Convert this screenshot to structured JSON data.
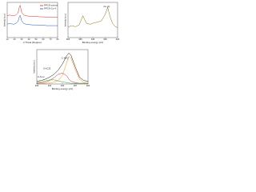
{
  "chart_data": [
    {
      "type": "line",
      "xlabel": "2 Theta (Degree)",
      "ylabel": "Intensity (a.u.)",
      "x": [
        10,
        13,
        16,
        19,
        22,
        25,
        27,
        28,
        30,
        33,
        36,
        40,
        45,
        50,
        55,
        60,
        65,
        70,
        75,
        80
      ],
      "xlim": [
        10,
        80
      ],
      "xticks": [
        10,
        20,
        30,
        40,
        50,
        60,
        70,
        80
      ],
      "ylim": [
        0,
        100
      ],
      "legend": "upper right",
      "series": [
        {
          "name": "PPCN-control",
          "color": "#d62728",
          "values": [
            62,
            64,
            63,
            62,
            64,
            70,
            88,
            92,
            72,
            64,
            62,
            61,
            60,
            60,
            59,
            59,
            58,
            58,
            58,
            58
          ]
        },
        {
          "name": "PPCN-Cu-4",
          "color": "#1f4fbf",
          "values": [
            38,
            40,
            39,
            38,
            40,
            46,
            60,
            63,
            48,
            40,
            38,
            37,
            36,
            36,
            35,
            35,
            34,
            34,
            34,
            34
          ]
        }
      ]
    },
    {
      "type": "line",
      "xlabel": "Binding energy (eV)",
      "ylabel": "Intensity (a.u.)",
      "annotations": [
        "Cu 2p"
      ],
      "x": [
        965,
        962,
        959,
        956,
        953,
        950,
        947,
        944,
        941,
        938,
        935,
        933,
        931,
        929,
        927,
        925
      ],
      "xlim": [
        965,
        925
      ],
      "xticks": [
        965,
        955,
        945,
        935,
        925
      ],
      "ylim": [
        0,
        100
      ],
      "series": [
        {
          "color": "#8b6d14",
          "values": [
            30,
            34,
            31,
            36,
            62,
            40,
            38,
            42,
            44,
            48,
            66,
            86,
            58,
            40,
            32,
            28
          ]
        }
      ]
    },
    {
      "type": "line",
      "xlabel": "Binding energy (eV)",
      "ylabel": "Intensity (a.u.)",
      "annotations": [
        "C-N=C",
        "N-(C)3",
        "C-N-H"
      ],
      "x": [
        406,
        405,
        404,
        403,
        402,
        401,
        400,
        399,
        398.5,
        398,
        397,
        396,
        395,
        394
      ],
      "xlim": [
        406,
        394
      ],
      "xticks": [
        406,
        403,
        400,
        397,
        394
      ],
      "ylim": [
        0,
        100
      ],
      "series": [
        {
          "color": "#111111",
          "values": [
            8,
            10,
            14,
            20,
            28,
            40,
            58,
            82,
            90,
            84,
            50,
            20,
            10,
            8
          ]
        },
        {
          "color": "#ff8c1a",
          "values": [
            2,
            2,
            2,
            3,
            5,
            10,
            25,
            62,
            80,
            75,
            42,
            14,
            4,
            2
          ]
        },
        {
          "color": "#d62728",
          "values": [
            2,
            3,
            5,
            10,
            18,
            28,
            32,
            24,
            14,
            8,
            4,
            2,
            2,
            2
          ]
        },
        {
          "color": "#2ca02c",
          "values": [
            4,
            6,
            9,
            12,
            12,
            9,
            6,
            4,
            3,
            2,
            2,
            2,
            2,
            2
          ]
        }
      ]
    }
  ]
}
